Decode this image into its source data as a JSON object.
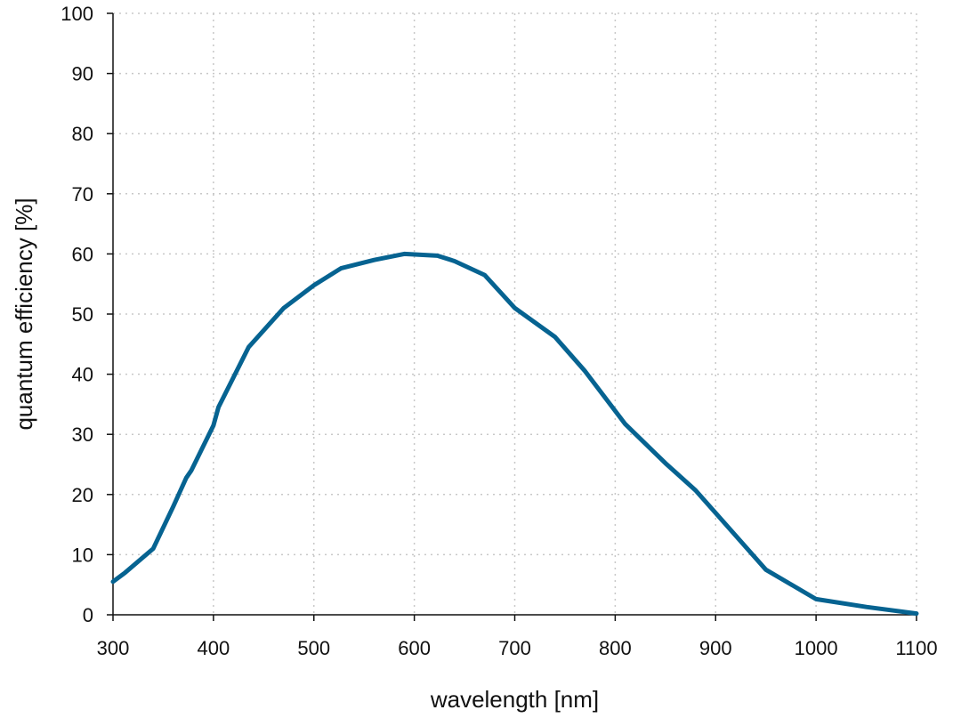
{
  "chart_data": {
    "type": "line",
    "title": "",
    "xlabel": "wavelength [nm]",
    "ylabel": "quantum efficiency [%]",
    "xlim": [
      300,
      1100
    ],
    "ylim": [
      0,
      100
    ],
    "xticks": [
      300,
      400,
      500,
      600,
      700,
      800,
      900,
      1000,
      1100
    ],
    "yticks": [
      0,
      10,
      20,
      30,
      40,
      50,
      60,
      70,
      80,
      90,
      100
    ],
    "grid": true,
    "line_color": "#066391",
    "grid_color": "#c8c8c8",
    "series": [
      {
        "x": [
          300,
          312,
          340,
          360,
          373,
          378,
          400,
          405,
          435,
          470,
          500,
          527,
          560,
          590,
          623,
          640,
          670,
          700,
          740,
          770,
          810,
          850,
          880,
          950,
          1000,
          1050,
          1100
        ],
        "y": [
          5.5,
          7.0,
          11.0,
          18.0,
          22.8,
          24.0,
          31.5,
          34.5,
          44.5,
          51.0,
          54.8,
          57.6,
          59.0,
          60.0,
          59.7,
          58.8,
          56.5,
          51.0,
          46.2,
          40.5,
          31.7,
          25.2,
          20.7,
          7.5,
          2.6,
          1.3,
          0.2
        ]
      }
    ]
  }
}
